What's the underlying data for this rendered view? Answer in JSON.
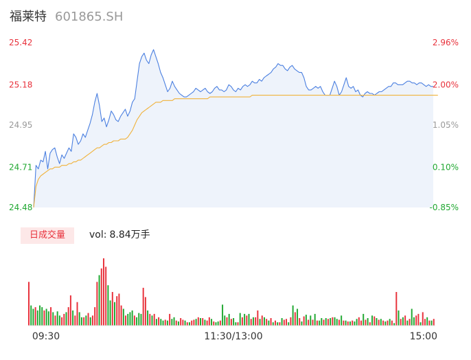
{
  "header": {
    "name": "福莱特",
    "code": "601865.SH"
  },
  "volume_panel": {
    "tab_label": "日成交量",
    "vol_label": "vol:",
    "vol_value": "8.84万手"
  },
  "colors": {
    "price_line": "#4a7fe0",
    "avg_line": "#f0b23a",
    "up": "#e8323c",
    "down": "#21a832",
    "area_fill": "#eef3fb",
    "neutral_text": "#999999"
  },
  "chart_data": [
    {
      "type": "line",
      "series": [
        {
          "values": [
            24.48,
            24.72,
            24.7,
            24.75,
            24.74,
            24.8,
            24.7,
            24.79,
            24.81,
            24.82,
            24.77,
            24.73,
            24.78,
            24.76,
            24.79,
            24.82,
            24.8,
            24.9,
            24.88,
            24.84,
            24.86,
            24.9,
            24.88,
            24.92,
            24.96,
            25.01,
            25.08,
            25.13,
            25.06,
            24.97,
            24.99,
            24.94,
            24.98,
            25.03,
            25.01,
            24.98,
            24.97,
            25.0,
            25.02,
            25.04,
            25.0,
            25.03,
            25.08,
            25.1,
            25.2,
            25.3,
            25.34,
            25.36,
            25.32,
            25.3,
            25.35,
            25.38,
            25.34,
            25.3,
            25.25,
            25.22,
            25.18,
            25.14,
            25.16,
            25.2,
            25.17,
            25.15,
            25.13,
            25.12,
            25.11,
            25.11,
            25.12,
            25.13,
            25.14,
            25.16,
            25.15,
            25.14,
            25.15,
            25.16,
            25.14,
            25.13,
            25.14,
            25.16,
            25.17,
            25.15,
            25.15,
            25.14,
            25.15,
            25.18,
            25.17,
            25.15,
            25.14,
            25.16,
            25.15,
            25.17,
            25.18,
            25.17,
            25.18,
            25.2,
            25.19,
            25.19,
            25.21,
            25.2,
            25.22,
            25.23,
            25.24,
            25.25,
            25.27,
            25.28,
            25.3,
            25.29,
            25.29,
            25.27,
            25.26,
            25.28,
            25.29,
            25.27,
            25.26,
            25.25,
            25.25,
            25.22,
            25.17,
            25.15,
            25.15,
            25.16,
            25.17,
            25.16,
            25.17,
            25.14,
            25.12,
            25.12,
            25.12,
            25.16,
            25.2,
            25.17,
            25.12,
            25.14,
            25.18,
            25.22,
            25.17,
            25.16,
            25.17,
            25.14,
            25.15,
            25.12,
            25.11,
            25.13,
            25.14,
            25.13,
            25.13,
            25.12,
            25.13,
            25.14,
            25.14,
            25.15,
            25.16,
            25.17,
            25.17,
            25.19,
            25.19,
            25.18,
            25.18,
            25.18,
            25.19,
            25.2,
            25.2,
            25.19,
            25.19,
            25.18,
            25.19,
            25.19,
            25.18,
            25.17,
            25.18,
            25.17,
            25.17
          ],
          "color": "#4a7fe0"
        },
        {
          "values": [
            24.48,
            24.6,
            24.64,
            24.66,
            24.67,
            24.68,
            24.69,
            24.7,
            24.7,
            24.71,
            24.71,
            24.71,
            24.72,
            24.72,
            24.72,
            24.73,
            24.73,
            24.74,
            24.74,
            24.75,
            24.75,
            24.76,
            24.77,
            24.78,
            24.79,
            24.8,
            24.81,
            24.82,
            24.82,
            24.83,
            24.84,
            24.84,
            24.85,
            24.85,
            24.86,
            24.86,
            24.86,
            24.87,
            24.87,
            24.87,
            24.88,
            24.9,
            24.92,
            24.95,
            24.98,
            25.0,
            25.02,
            25.03,
            25.04,
            25.05,
            25.06,
            25.07,
            25.08,
            25.08,
            25.08,
            25.09,
            25.09,
            25.09,
            25.09,
            25.09,
            25.1,
            25.1,
            25.1,
            25.1,
            25.1,
            25.1,
            25.1,
            25.1,
            25.1,
            25.1,
            25.1,
            25.1,
            25.1,
            25.1,
            25.1,
            25.11,
            25.11,
            25.11,
            25.11,
            25.11,
            25.11,
            25.11,
            25.11,
            25.11,
            25.11,
            25.11,
            25.11,
            25.11,
            25.11,
            25.11,
            25.11,
            25.11,
            25.11,
            25.12,
            25.12,
            25.12,
            25.12,
            25.12,
            25.12,
            25.12,
            25.12,
            25.12,
            25.12,
            25.12,
            25.12,
            25.12,
            25.12,
            25.12,
            25.12,
            25.12,
            25.12,
            25.12,
            25.12,
            25.12,
            25.12,
            25.12,
            25.12,
            25.12,
            25.12,
            25.12,
            25.12,
            25.12,
            25.12,
            25.12,
            25.12,
            25.12,
            25.12,
            25.12,
            25.12,
            25.12,
            25.12,
            25.12,
            25.12,
            25.12,
            25.12,
            25.12,
            25.12,
            25.12,
            25.12,
            25.12,
            25.12,
            25.12,
            25.12,
            25.12,
            25.12,
            25.12,
            25.12,
            25.12,
            25.12,
            25.12,
            25.12,
            25.12,
            25.12,
            25.12,
            25.12,
            25.12,
            25.12,
            25.12,
            25.12,
            25.12,
            25.12,
            25.12,
            25.12,
            25.12,
            25.12,
            25.12,
            25.12,
            25.12,
            25.12,
            25.12,
            25.12,
            25.12,
            25.12
          ],
          "color": "#f0b23a"
        }
      ],
      "ylim": [
        24.48,
        25.42
      ],
      "y_ticks_left": [
        {
          "value": 25.42,
          "label": "25.42",
          "color": "#e8323c"
        },
        {
          "value": 25.18,
          "label": "25.18",
          "color": "#e8323c"
        },
        {
          "value": 24.95,
          "label": "24.95",
          "color": "#999999"
        },
        {
          "value": 24.71,
          "label": "24.71",
          "color": "#21a832"
        },
        {
          "value": 24.48,
          "label": "24.48",
          "color": "#21a832"
        }
      ],
      "y_ticks_right": [
        {
          "value": 25.42,
          "label": "2.96%",
          "color": "#e8323c"
        },
        {
          "value": 25.18,
          "label": "2.00%",
          "color": "#e8323c"
        },
        {
          "value": 24.95,
          "label": "1.05%",
          "color": "#999999"
        },
        {
          "value": 24.71,
          "label": "0.10%",
          "color": "#21a832"
        },
        {
          "value": 24.48,
          "label": "-0.85%",
          "color": "#21a832"
        }
      ],
      "grid": false
    },
    {
      "type": "bar",
      "x_ticks": [
        "09:30",
        "11:30/13:00",
        "15:00"
      ],
      "values": [
        52,
        24,
        20,
        22,
        18,
        24,
        22,
        18,
        20,
        17,
        22,
        16,
        12,
        17,
        12,
        10,
        14,
        16,
        22,
        36,
        18,
        12,
        28,
        16,
        10,
        10,
        12,
        15,
        10,
        12,
        22,
        52,
        60,
        68,
        80,
        70,
        48,
        30,
        40,
        28,
        35,
        38,
        24,
        20,
        12,
        14,
        16,
        18,
        12,
        10,
        15,
        14,
        45,
        34,
        18,
        14,
        12,
        14,
        8,
        10,
        8,
        6,
        7,
        6,
        14,
        8,
        10,
        6,
        5,
        9,
        7,
        6,
        4,
        4,
        6,
        7,
        8,
        10,
        9,
        9,
        7,
        6,
        10,
        8,
        5,
        4,
        5,
        6,
        25,
        12,
        10,
        14,
        8,
        9,
        4,
        4,
        15,
        10,
        14,
        12,
        14,
        8,
        10,
        10,
        18,
        8,
        12,
        10,
        8,
        6,
        9,
        4,
        6,
        4,
        4,
        9,
        7,
        8,
        4,
        10,
        24,
        16,
        20,
        9,
        5,
        11,
        13,
        7,
        12,
        7,
        14,
        6,
        6,
        9,
        7,
        9,
        8,
        9,
        10,
        10,
        8,
        7,
        12,
        6,
        6,
        5,
        5,
        6,
        5,
        8,
        10,
        6,
        14,
        7,
        9,
        4,
        12,
        11,
        9,
        7,
        8,
        6,
        5,
        6,
        8,
        6,
        3,
        40,
        18,
        8,
        10,
        12,
        6,
        8,
        20,
        10,
        12,
        14,
        4,
        16,
        8,
        10,
        6,
        6,
        8
      ],
      "colors": [
        "#e8323c",
        "#21a832",
        "#21a832",
        "#e8323c",
        "#21a832",
        "#21a832",
        "#21a832",
        "#e8323c",
        "#21a832",
        "#21a832",
        "#e8323c",
        "#21a832",
        "#e8323c",
        "#21a832",
        "#21a832",
        "#e8323c",
        "#e8323c",
        "#21a832",
        "#e8323c",
        "#e8323c",
        "#21a832",
        "#e8323c",
        "#e8323c",
        "#21a832",
        "#21a832",
        "#e8323c",
        "#21a832",
        "#e8323c",
        "#21a832",
        "#e8323c",
        "#e8323c",
        "#e8323c",
        "#21a832",
        "#e8323c",
        "#e8323c",
        "#e8323c",
        "#21a832",
        "#21a832",
        "#e8323c",
        "#21a832",
        "#e8323c",
        "#e8323c",
        "#e8323c",
        "#21a832",
        "#e8323c",
        "#21a832",
        "#21a832",
        "#21a832",
        "#e8323c",
        "#21a832",
        "#21a832",
        "#21a832",
        "#e8323c",
        "#e8323c",
        "#21a832",
        "#e8323c",
        "#21a832",
        "#e8323c",
        "#21a832",
        "#e8323c",
        "#21a832",
        "#21a832",
        "#e8323c",
        "#21a832",
        "#e8323c",
        "#21a832",
        "#21a832",
        "#e8323c",
        "#21a832",
        "#e8323c",
        "#e8323c",
        "#21a832",
        "#e8323c",
        "#21a832",
        "#e8323c",
        "#e8323c",
        "#21a832",
        "#e8323c",
        "#21a832",
        "#e8323c",
        "#21a832",
        "#e8323c",
        "#e8323c",
        "#21a832",
        "#e8323c",
        "#21a832",
        "#21a832",
        "#e8323c",
        "#21a832",
        "#21a832",
        "#e8323c",
        "#21a832",
        "#e8323c",
        "#21a832",
        "#21a832",
        "#e8323c",
        "#21a832",
        "#e8323c",
        "#21a832",
        "#e8323c",
        "#21a832",
        "#e8323c",
        "#21a832",
        "#e8323c",
        "#e8323c",
        "#21a832",
        "#e8323c",
        "#21a832",
        "#e8323c",
        "#21a832",
        "#e8323c",
        "#21a832",
        "#e8323c",
        "#21a832",
        "#e8323c",
        "#21a832",
        "#e8323c",
        "#e8323c",
        "#21a832",
        "#e8323c",
        "#21a832",
        "#e8323c",
        "#21a832",
        "#e8323c",
        "#21a832",
        "#e8323c",
        "#21a832",
        "#e8323c",
        "#21a832",
        "#e8323c",
        "#21a832",
        "#e8323c",
        "#21a832",
        "#21a832",
        "#e8323c",
        "#21a832",
        "#e8323c",
        "#21a832",
        "#e8323c",
        "#21a832",
        "#21a832",
        "#e8323c",
        "#21a832",
        "#e8323c",
        "#21a832",
        "#e8323c",
        "#21a832",
        "#e8323c",
        "#21a832",
        "#21a832",
        "#e8323c",
        "#e8323c",
        "#21a832",
        "#e8323c",
        "#21a832",
        "#e8323c",
        "#21a832",
        "#e8323c",
        "#21a832",
        "#e8323c",
        "#21a832",
        "#e8323c",
        "#21a832",
        "#e8323c",
        "#21a832",
        "#e8323c",
        "#21a832",
        "#e8323c",
        "#21a832",
        "#e8323c",
        "#21a832",
        "#e8323c",
        "#21a832",
        "#e8323c",
        "#21a832",
        "#21a832",
        "#e8323c",
        "#e8323c",
        "#21a832",
        "#e8323c",
        "#e8323c",
        "#21a832",
        "#e8323c",
        "#21a832",
        "#e8323c",
        "#21a832",
        "#e8323c",
        "#21a832"
      ]
    }
  ]
}
